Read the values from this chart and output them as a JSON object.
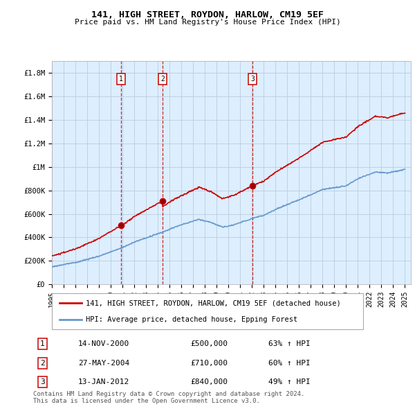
{
  "title1": "141, HIGH STREET, ROYDON, HARLOW, CM19 5EF",
  "title2": "Price paid vs. HM Land Registry's House Price Index (HPI)",
  "ylabel_ticks": [
    "£0",
    "£200K",
    "£400K",
    "£600K",
    "£800K",
    "£1M",
    "£1.2M",
    "£1.4M",
    "£1.6M",
    "£1.8M"
  ],
  "ylabel_values": [
    0,
    200000,
    400000,
    600000,
    800000,
    1000000,
    1200000,
    1400000,
    1600000,
    1800000
  ],
  "ylim": [
    0,
    1900000
  ],
  "xlim_start": 1995.0,
  "xlim_end": 2025.5,
  "xtick_years": [
    1995,
    1996,
    1997,
    1998,
    1999,
    2000,
    2001,
    2002,
    2003,
    2004,
    2005,
    2006,
    2007,
    2008,
    2009,
    2010,
    2011,
    2012,
    2013,
    2014,
    2015,
    2016,
    2017,
    2018,
    2019,
    2020,
    2021,
    2022,
    2023,
    2024,
    2025
  ],
  "sale_dates": [
    2000.87,
    2004.41,
    2012.04
  ],
  "sale_prices": [
    500000,
    710000,
    840000
  ],
  "sale_labels": [
    "1",
    "2",
    "3"
  ],
  "legend_line1": "141, HIGH STREET, ROYDON, HARLOW, CM19 5EF (detached house)",
  "legend_line2": "HPI: Average price, detached house, Epping Forest",
  "table_rows": [
    [
      "1",
      "14-NOV-2000",
      "£500,000",
      "63% ↑ HPI"
    ],
    [
      "2",
      "27-MAY-2004",
      "£710,000",
      "60% ↑ HPI"
    ],
    [
      "3",
      "13-JAN-2012",
      "£840,000",
      "49% ↑ HPI"
    ]
  ],
  "footnote1": "Contains HM Land Registry data © Crown copyright and database right 2024.",
  "footnote2": "This data is licensed under the Open Government Licence v3.0.",
  "red_color": "#cc0000",
  "blue_line_color": "#6699cc",
  "chart_bg_color": "#ddeeff",
  "plot_bg": "#ffffff",
  "grid_color": "#bbccdd"
}
